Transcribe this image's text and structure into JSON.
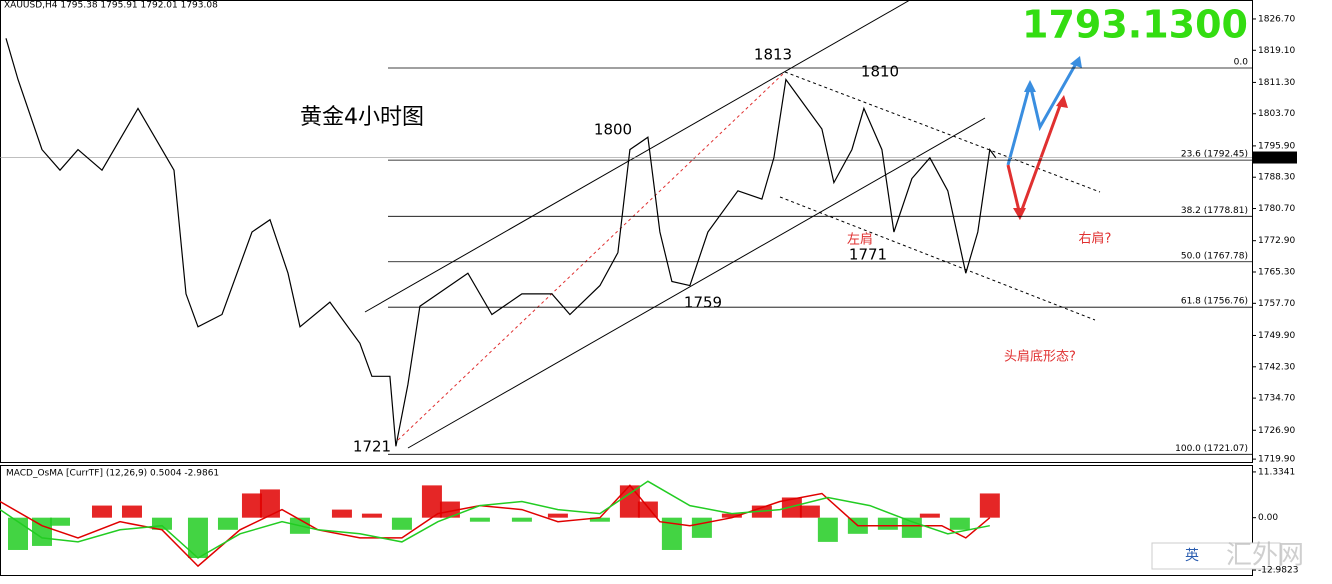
{
  "chart_data": {
    "type": "line",
    "header": "XAUUSD,H4  1795.38 1795.91 1792.01 1793.08",
    "big_price": "1793.1300",
    "title": "黄金4小时图",
    "price_color": "#000000",
    "x": [
      1,
      3,
      7,
      10,
      13,
      17,
      23,
      27,
      29,
      31,
      33,
      37,
      42,
      45,
      48,
      50,
      55,
      60,
      62,
      65,
      66,
      68,
      70,
      73,
      78,
      82,
      87,
      92,
      95,
      100,
      103,
      105,
      108,
      110,
      112,
      115,
      118,
      123,
      127,
      129,
      131,
      133,
      137,
      139,
      142,
      144,
      147,
      149,
      152,
      155,
      158,
      161,
      163,
      165,
      166
    ],
    "values": [
      1822,
      1812,
      1795,
      1790,
      1795,
      1790,
      1805,
      1795,
      1790,
      1760,
      1752,
      1755,
      1775,
      1778,
      1765,
      1752,
      1758,
      1748,
      1740,
      1740,
      1723,
      1738,
      1757,
      1760,
      1765,
      1755,
      1760,
      1760,
      1755,
      1762,
      1770,
      1795,
      1798,
      1775,
      1763,
      1762,
      1775,
      1785,
      1783,
      1793,
      1812,
      1808,
      1800,
      1787,
      1795,
      1805,
      1795,
      1775,
      1788,
      1793,
      1785,
      1765,
      1775,
      1795,
      1793
    ],
    "xlim": [
      0,
      208.7
    ],
    "ylim": [
      1719.2,
      1831.3
    ],
    "yticks": [
      {
        "value": 1826.7,
        "label": "1826.70"
      },
      {
        "value": 1819.1,
        "label": "1819.10"
      },
      {
        "value": 1811.3,
        "label": "1811.30"
      },
      {
        "value": 1803.7,
        "label": "1803.70"
      },
      {
        "value": 1795.9,
        "label": "1795.90"
      },
      {
        "value": 1788.3,
        "label": "1788.30"
      },
      {
        "value": 1780.7,
        "label": "1780.70"
      },
      {
        "value": 1772.9,
        "label": "1772.90"
      },
      {
        "value": 1765.3,
        "label": "1765.30"
      },
      {
        "value": 1757.7,
        "label": "1757.70"
      },
      {
        "value": 1749.9,
        "label": "1749.90"
      },
      {
        "value": 1742.3,
        "label": "1742.30"
      },
      {
        "value": 1734.7,
        "label": "1734.70"
      },
      {
        "value": 1726.9,
        "label": "1726.90"
      },
      {
        "value": 1719.9,
        "label": "1719.90"
      }
    ],
    "current_price": {
      "value": 1793.08,
      "label": "1793.08"
    },
    "fib_levels": [
      {
        "price": 1814.8,
        "label": "0.0"
      },
      {
        "price": 1792.45,
        "label": "23.6 (1792.45)"
      },
      {
        "price": 1778.81,
        "label": "38.2 (1778.81)"
      },
      {
        "price": 1767.78,
        "label": "50.0 (1767.78)"
      },
      {
        "price": 1756.76,
        "label": "61.8 (1756.76)"
      },
      {
        "price": 1721.07,
        "label": "100.0 (1721.07)"
      }
    ],
    "annotations": [
      "1813",
      "1810",
      "1800",
      "1771",
      "1759",
      "1721",
      "左肩",
      "右肩?",
      "头肩底形态?"
    ],
    "macd": {
      "label": "MACD_OsMA [CurrTF] (12,26,9) 0.5004 -2.9861",
      "ylim": [
        -14.2,
        12.8
      ],
      "yticks": [
        {
          "value": 11.3341,
          "label": "11.3341"
        },
        {
          "value": 0,
          "label": "0.00"
        },
        {
          "value": -12.9823,
          "label": "-12.9823"
        }
      ],
      "up_color": "#e00000",
      "down_color": "#22cc22",
      "hist_x": [
        3,
        7,
        10,
        17,
        22,
        27,
        33,
        38,
        42,
        45,
        50,
        57,
        62,
        67,
        72,
        75,
        80,
        87,
        93,
        100,
        105,
        108,
        112,
        117,
        122,
        127,
        132,
        135,
        138,
        143,
        148,
        152,
        155,
        160,
        165
      ],
      "hist": [
        -8,
        -7,
        -2,
        3,
        3,
        -3,
        -10,
        -3,
        6,
        7,
        -4,
        2,
        1,
        -3,
        8,
        4,
        -1,
        -1,
        1,
        -1,
        8,
        4,
        -8,
        -5,
        1,
        3,
        5,
        3,
        -6,
        -4,
        -3,
        -5,
        1,
        -3,
        6
      ],
      "series": [
        {
          "color": "#e00000",
          "x": [
            0,
            7,
            13,
            20,
            27,
            33,
            40,
            47,
            53,
            60,
            67,
            73,
            80,
            87,
            93,
            100,
            105,
            110,
            115,
            122,
            130,
            137,
            143,
            150,
            157,
            161,
            165
          ],
          "values": [
            4,
            -2,
            -5,
            -1,
            -3,
            -12,
            -3,
            2,
            -3,
            -5,
            -5,
            1,
            3,
            2,
            -1,
            0,
            8,
            -1,
            -2,
            0,
            4,
            6,
            -2,
            -2,
            -2,
            -5,
            0
          ]
        },
        {
          "color": "#22cc22",
          "x": [
            0,
            7,
            13,
            20,
            27,
            33,
            40,
            47,
            53,
            60,
            67,
            73,
            80,
            87,
            93,
            100,
            108,
            115,
            122,
            130,
            138,
            145,
            152,
            158,
            165
          ],
          "values": [
            2,
            -5,
            -6,
            -3,
            -2,
            -10,
            -4,
            -1,
            -3,
            -4,
            -6,
            -1,
            3,
            4,
            2,
            1,
            9,
            3,
            1,
            2,
            5,
            3,
            -1,
            -4,
            -2
          ]
        }
      ]
    },
    "watermark": [
      "英",
      "汇外网"
    ]
  }
}
